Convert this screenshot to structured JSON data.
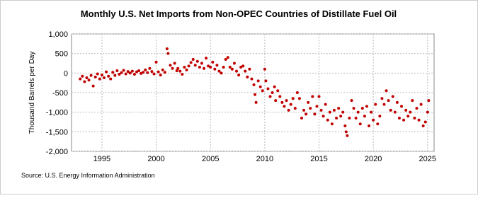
{
  "chart_data": {
    "type": "scatter",
    "title": "Monthly U.S. Net Imports from Non-OPEC Countries of Distillate Fuel Oil",
    "ylabel": "Thousand Barrels per Day",
    "source": "Source: U.S. Energy Information Administration",
    "color": "#c00000",
    "grid": true,
    "xlim": [
      1992.2,
      2025.6
    ],
    "ylim": [
      -2000,
      1000
    ],
    "xticks": [
      1995,
      2000,
      2005,
      2010,
      2015,
      2020,
      2025
    ],
    "yticks": [
      {
        "value": 1000,
        "label": "1,000"
      },
      500,
      0,
      -500,
      {
        "value": -1000,
        "label": "-1,000"
      },
      {
        "value": -1500,
        "label": "-1,500"
      },
      {
        "value": -2000,
        "label": "-2,000"
      }
    ],
    "x": [
      1993.0,
      1993.2,
      1993.4,
      1993.6,
      1993.8,
      1994.0,
      1994.2,
      1994.4,
      1994.6,
      1994.8,
      1995.0,
      1995.2,
      1995.4,
      1995.6,
      1995.8,
      1996.0,
      1996.2,
      1996.4,
      1996.6,
      1996.8,
      1997.0,
      1997.2,
      1997.4,
      1997.6,
      1997.8,
      1998.0,
      1998.2,
      1998.4,
      1998.6,
      1998.8,
      1999.0,
      1999.2,
      1999.4,
      1999.6,
      1999.8,
      2000.0,
      2000.2,
      2000.4,
      2000.6,
      2000.8,
      2001.0,
      2001.1,
      2001.3,
      2001.5,
      2001.7,
      2001.9,
      2002.0,
      2002.2,
      2002.4,
      2002.6,
      2002.8,
      2003.0,
      2003.2,
      2003.4,
      2003.6,
      2003.8,
      2004.0,
      2004.2,
      2004.4,
      2004.6,
      2004.8,
      2005.0,
      2005.2,
      2005.4,
      2005.6,
      2005.8,
      2006.0,
      2006.2,
      2006.4,
      2006.6,
      2006.8,
      2007.0,
      2007.2,
      2007.4,
      2007.6,
      2007.8,
      2008.0,
      2008.2,
      2008.4,
      2008.6,
      2008.8,
      2009.0,
      2009.1,
      2009.2,
      2009.4,
      2009.6,
      2009.8,
      2010.0,
      2010.1,
      2010.3,
      2010.5,
      2010.7,
      2010.9,
      2011.0,
      2011.2,
      2011.4,
      2011.6,
      2011.8,
      2012.0,
      2012.2,
      2012.4,
      2012.6,
      2012.8,
      2013.0,
      2013.2,
      2013.4,
      2013.6,
      2013.8,
      2014.0,
      2014.2,
      2014.4,
      2014.6,
      2014.8,
      2015.0,
      2015.2,
      2015.4,
      2015.6,
      2015.8,
      2016.0,
      2016.2,
      2016.4,
      2016.6,
      2016.8,
      2017.0,
      2017.2,
      2017.4,
      2017.5,
      2017.6,
      2017.8,
      2018.0,
      2018.2,
      2018.4,
      2018.6,
      2018.8,
      2019.0,
      2019.2,
      2019.4,
      2019.6,
      2019.8,
      2020.0,
      2020.2,
      2020.4,
      2020.6,
      2020.8,
      2021.0,
      2021.2,
      2021.4,
      2021.6,
      2021.8,
      2022.0,
      2022.2,
      2022.4,
      2022.6,
      2022.8,
      2023.0,
      2023.2,
      2023.4,
      2023.6,
      2023.8,
      2024.0,
      2024.2,
      2024.4,
      2024.6,
      2024.8,
      2025.0,
      2025.1
    ],
    "values": [
      -150,
      -80,
      -220,
      -120,
      -180,
      -60,
      -330,
      -100,
      -20,
      -150,
      -50,
      -120,
      30,
      -80,
      -150,
      20,
      -60,
      60,
      -30,
      10,
      70,
      -20,
      40,
      0,
      50,
      -30,
      30,
      60,
      -10,
      20,
      80,
      10,
      120,
      40,
      -20,
      280,
      30,
      -50,
      80,
      20,
      620,
      500,
      200,
      120,
      250,
      60,
      120,
      50,
      -30,
      150,
      80,
      180,
      270,
      350,
      200,
      300,
      150,
      250,
      120,
      380,
      180,
      150,
      280,
      100,
      200,
      50,
      0,
      150,
      350,
      400,
      150,
      100,
      250,
      50,
      -50,
      150,
      180,
      50,
      -100,
      100,
      -150,
      -300,
      -550,
      -750,
      -200,
      -350,
      -450,
      100,
      -200,
      -400,
      -600,
      -500,
      -350,
      -700,
      -450,
      -600,
      -750,
      -850,
      -700,
      -950,
      -800,
      -650,
      -900,
      -500,
      -650,
      -1150,
      -950,
      -1050,
      -750,
      -900,
      -600,
      -1050,
      -850,
      -600,
      -950,
      -1100,
      -800,
      -1200,
      -1000,
      -1300,
      -950,
      -1150,
      -900,
      -1100,
      -1000,
      -1350,
      -1500,
      -1600,
      -1150,
      -700,
      -900,
      -1150,
      -1000,
      -1300,
      -900,
      -1100,
      -850,
      -1350,
      -1000,
      -1200,
      -800,
      -1300,
      -1100,
      -650,
      -800,
      -450,
      -700,
      -950,
      -600,
      -1000,
      -750,
      -1150,
      -850,
      -1200,
      -950,
      -1100,
      -1000,
      -700,
      -1150,
      -900,
      -1200,
      -800,
      -1350,
      -1250,
      -1000,
      -700
    ]
  }
}
